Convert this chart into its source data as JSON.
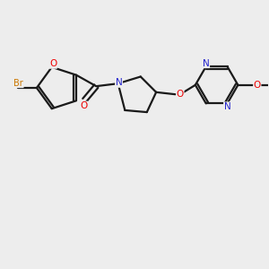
{
  "background_color": "#EDEDED",
  "bond_color": "#1a1a1a",
  "atom_colors": {
    "Br": "#CC7700",
    "O": "#EE0000",
    "N": "#2222CC",
    "C": "#1a1a1a"
  },
  "figsize": [
    3.0,
    3.0
  ],
  "dpi": 100
}
